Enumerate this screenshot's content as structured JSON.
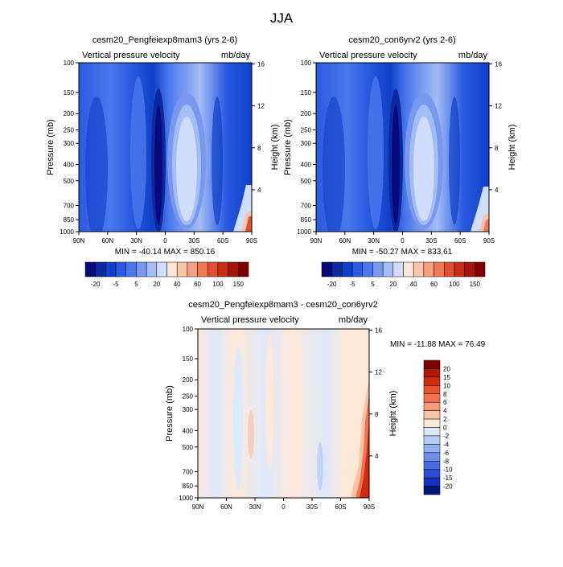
{
  "figure": {
    "title": "JJA",
    "cb_top_labels": [
      "-20",
      "-5",
      "5",
      "20",
      "40",
      "60",
      "100",
      "150"
    ],
    "colors": [
      "#0a0a7d",
      "#0c2aa0",
      "#1040c8",
      "#2a5ae0",
      "#4a78ec",
      "#7898f0",
      "#a4bcf4",
      "#cfdcfa",
      "#fbe5d5",
      "#f9c4a8",
      "#f59f80",
      "#ef7755",
      "#e04f30",
      "#c82d16",
      "#a4150b",
      "#800000"
    ],
    "panel_top_left": {
      "title": "cesm20_Pengfeiexp8mam3 (yrs 2-6)",
      "left_label": "Vertical pressure velocity",
      "right_label": "mb/day",
      "ylabel": "Pressure (mb)",
      "ylabel_right": "Height (km)",
      "minmax": "MIN = -40.14   MAX = 850.16"
    },
    "panel_top_right": {
      "title": "cesm20_con6yrv2 (yrs 2-6)",
      "left_label": "Vertical pressure velocity",
      "right_label": "mb/day",
      "ylabel": "Pressure (mb)",
      "ylabel_right": "Height (km)",
      "minmax": "MIN = -50.27   MAX = 833.61"
    },
    "panel_bottom": {
      "title": "cesm20_Pengfeiexp8mam3 - cesm20_con6yrv2",
      "left_label": "Vertical pressure velocity",
      "right_label": "mb/day",
      "ylabel": "Pressure (mb)",
      "ylabel_right": "Height (km)",
      "minmax": "MIN = -11.88   MAX =  76.49",
      "cb_labels": [
        "20",
        "15",
        "10",
        "8",
        "6",
        "4",
        "2",
        "0",
        "-2",
        "-4",
        "-6",
        "-8",
        "-10",
        "-15",
        "-20"
      ],
      "cb_colors": [
        "#800000",
        "#b01808",
        "#d02a12",
        "#e8502e",
        "#f47150",
        "#f79a7a",
        "#f9c4a6",
        "#fde8d8",
        "#dce8fb",
        "#b8cdf6",
        "#93b0f0",
        "#6d8eea",
        "#4a6ee2",
        "#2a4ed6",
        "#1434c0",
        "#05157e"
      ]
    }
  },
  "chart_data": [
    {
      "type": "heatmap",
      "title": "cesm20_Pengfeiexp8mam3 (yrs 2-6)",
      "variable": "Vertical pressure velocity",
      "units": "mb/day",
      "xlabel": "",
      "ylabel": "Pressure (mb)",
      "ylabel_right": "Height (km)",
      "x_ticks": [
        "90N",
        "60N",
        "30N",
        "0",
        "30S",
        "60S",
        "90S"
      ],
      "y_ticks": [
        100,
        150,
        200,
        250,
        300,
        400,
        500,
        700,
        850,
        1000
      ],
      "y_right_ticks": [
        4,
        8,
        12,
        16
      ],
      "min": -40.14,
      "max": 850.16,
      "contour_levels": [
        -20,
        -15,
        -10,
        -5,
        0,
        5,
        10,
        20,
        30,
        40,
        50,
        60,
        80,
        100,
        120,
        150
      ]
    },
    {
      "type": "heatmap",
      "title": "cesm20_con6yrv2 (yrs 2-6)",
      "variable": "Vertical pressure velocity",
      "units": "mb/day",
      "xlabel": "",
      "ylabel": "Pressure (mb)",
      "ylabel_right": "Height (km)",
      "x_ticks": [
        "90N",
        "60N",
        "30N",
        "0",
        "30S",
        "60S",
        "90S"
      ],
      "y_ticks": [
        100,
        150,
        200,
        250,
        300,
        400,
        500,
        700,
        850,
        1000
      ],
      "y_right_ticks": [
        4,
        8,
        12,
        16
      ],
      "min": -50.27,
      "max": 833.61,
      "contour_levels": [
        -20,
        -15,
        -10,
        -5,
        0,
        5,
        10,
        20,
        30,
        40,
        50,
        60,
        80,
        100,
        120,
        150
      ]
    },
    {
      "type": "heatmap",
      "title": "cesm20_Pengfeiexp8mam3 - cesm20_con6yrv2",
      "variable": "Vertical pressure velocity",
      "units": "mb/day",
      "xlabel": "",
      "ylabel": "Pressure (mb)",
      "ylabel_right": "Height (km)",
      "x_ticks": [
        "90N",
        "60N",
        "30N",
        "0",
        "30S",
        "60S",
        "90S"
      ],
      "y_ticks": [
        100,
        150,
        200,
        250,
        300,
        400,
        500,
        700,
        850,
        1000
      ],
      "y_right_ticks": [
        4,
        8,
        12,
        16
      ],
      "min": -11.88,
      "max": 76.49,
      "contour_levels": [
        -20,
        -15,
        -10,
        -8,
        -6,
        -4,
        -2,
        0,
        2,
        4,
        6,
        8,
        10,
        15,
        20
      ]
    }
  ]
}
